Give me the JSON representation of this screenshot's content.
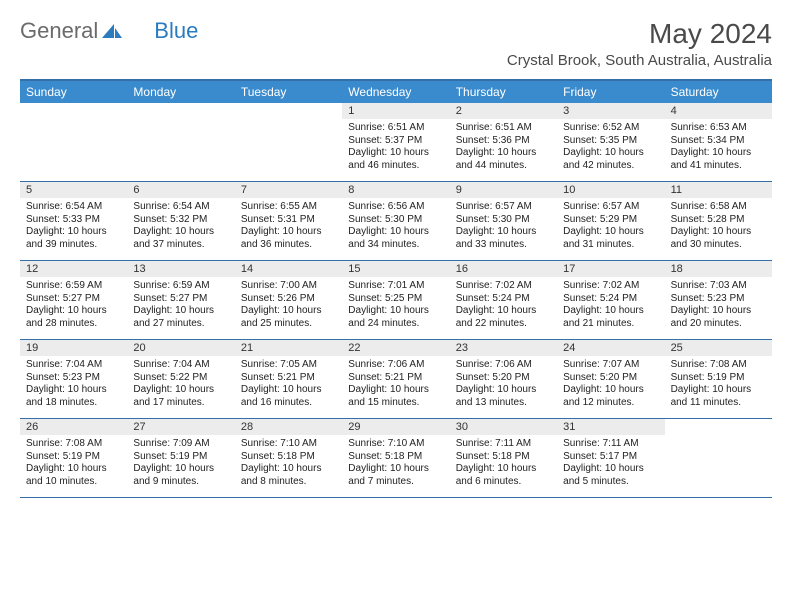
{
  "brand": {
    "part1": "General",
    "part2": "Blue"
  },
  "title": "May 2024",
  "location": "Crystal Brook, South Australia, Australia",
  "dayHeaders": [
    "Sunday",
    "Monday",
    "Tuesday",
    "Wednesday",
    "Thursday",
    "Friday",
    "Saturday"
  ],
  "colors": {
    "header_bg": "#3a8bcd",
    "divider": "#356fa8",
    "daynum_bg": "#ececec",
    "brand_gray": "#6b6b6b",
    "brand_blue": "#2b7bbf"
  },
  "weeks": [
    [
      {
        "num": "",
        "sunrise": "",
        "sunset": "",
        "daylight": ""
      },
      {
        "num": "",
        "sunrise": "",
        "sunset": "",
        "daylight": ""
      },
      {
        "num": "",
        "sunrise": "",
        "sunset": "",
        "daylight": ""
      },
      {
        "num": "1",
        "sunrise": "Sunrise: 6:51 AM",
        "sunset": "Sunset: 5:37 PM",
        "daylight": "Daylight: 10 hours and 46 minutes."
      },
      {
        "num": "2",
        "sunrise": "Sunrise: 6:51 AM",
        "sunset": "Sunset: 5:36 PM",
        "daylight": "Daylight: 10 hours and 44 minutes."
      },
      {
        "num": "3",
        "sunrise": "Sunrise: 6:52 AM",
        "sunset": "Sunset: 5:35 PM",
        "daylight": "Daylight: 10 hours and 42 minutes."
      },
      {
        "num": "4",
        "sunrise": "Sunrise: 6:53 AM",
        "sunset": "Sunset: 5:34 PM",
        "daylight": "Daylight: 10 hours and 41 minutes."
      }
    ],
    [
      {
        "num": "5",
        "sunrise": "Sunrise: 6:54 AM",
        "sunset": "Sunset: 5:33 PM",
        "daylight": "Daylight: 10 hours and 39 minutes."
      },
      {
        "num": "6",
        "sunrise": "Sunrise: 6:54 AM",
        "sunset": "Sunset: 5:32 PM",
        "daylight": "Daylight: 10 hours and 37 minutes."
      },
      {
        "num": "7",
        "sunrise": "Sunrise: 6:55 AM",
        "sunset": "Sunset: 5:31 PM",
        "daylight": "Daylight: 10 hours and 36 minutes."
      },
      {
        "num": "8",
        "sunrise": "Sunrise: 6:56 AM",
        "sunset": "Sunset: 5:30 PM",
        "daylight": "Daylight: 10 hours and 34 minutes."
      },
      {
        "num": "9",
        "sunrise": "Sunrise: 6:57 AM",
        "sunset": "Sunset: 5:30 PM",
        "daylight": "Daylight: 10 hours and 33 minutes."
      },
      {
        "num": "10",
        "sunrise": "Sunrise: 6:57 AM",
        "sunset": "Sunset: 5:29 PM",
        "daylight": "Daylight: 10 hours and 31 minutes."
      },
      {
        "num": "11",
        "sunrise": "Sunrise: 6:58 AM",
        "sunset": "Sunset: 5:28 PM",
        "daylight": "Daylight: 10 hours and 30 minutes."
      }
    ],
    [
      {
        "num": "12",
        "sunrise": "Sunrise: 6:59 AM",
        "sunset": "Sunset: 5:27 PM",
        "daylight": "Daylight: 10 hours and 28 minutes."
      },
      {
        "num": "13",
        "sunrise": "Sunrise: 6:59 AM",
        "sunset": "Sunset: 5:27 PM",
        "daylight": "Daylight: 10 hours and 27 minutes."
      },
      {
        "num": "14",
        "sunrise": "Sunrise: 7:00 AM",
        "sunset": "Sunset: 5:26 PM",
        "daylight": "Daylight: 10 hours and 25 minutes."
      },
      {
        "num": "15",
        "sunrise": "Sunrise: 7:01 AM",
        "sunset": "Sunset: 5:25 PM",
        "daylight": "Daylight: 10 hours and 24 minutes."
      },
      {
        "num": "16",
        "sunrise": "Sunrise: 7:02 AM",
        "sunset": "Sunset: 5:24 PM",
        "daylight": "Daylight: 10 hours and 22 minutes."
      },
      {
        "num": "17",
        "sunrise": "Sunrise: 7:02 AM",
        "sunset": "Sunset: 5:24 PM",
        "daylight": "Daylight: 10 hours and 21 minutes."
      },
      {
        "num": "18",
        "sunrise": "Sunrise: 7:03 AM",
        "sunset": "Sunset: 5:23 PM",
        "daylight": "Daylight: 10 hours and 20 minutes."
      }
    ],
    [
      {
        "num": "19",
        "sunrise": "Sunrise: 7:04 AM",
        "sunset": "Sunset: 5:23 PM",
        "daylight": "Daylight: 10 hours and 18 minutes."
      },
      {
        "num": "20",
        "sunrise": "Sunrise: 7:04 AM",
        "sunset": "Sunset: 5:22 PM",
        "daylight": "Daylight: 10 hours and 17 minutes."
      },
      {
        "num": "21",
        "sunrise": "Sunrise: 7:05 AM",
        "sunset": "Sunset: 5:21 PM",
        "daylight": "Daylight: 10 hours and 16 minutes."
      },
      {
        "num": "22",
        "sunrise": "Sunrise: 7:06 AM",
        "sunset": "Sunset: 5:21 PM",
        "daylight": "Daylight: 10 hours and 15 minutes."
      },
      {
        "num": "23",
        "sunrise": "Sunrise: 7:06 AM",
        "sunset": "Sunset: 5:20 PM",
        "daylight": "Daylight: 10 hours and 13 minutes."
      },
      {
        "num": "24",
        "sunrise": "Sunrise: 7:07 AM",
        "sunset": "Sunset: 5:20 PM",
        "daylight": "Daylight: 10 hours and 12 minutes."
      },
      {
        "num": "25",
        "sunrise": "Sunrise: 7:08 AM",
        "sunset": "Sunset: 5:19 PM",
        "daylight": "Daylight: 10 hours and 11 minutes."
      }
    ],
    [
      {
        "num": "26",
        "sunrise": "Sunrise: 7:08 AM",
        "sunset": "Sunset: 5:19 PM",
        "daylight": "Daylight: 10 hours and 10 minutes."
      },
      {
        "num": "27",
        "sunrise": "Sunrise: 7:09 AM",
        "sunset": "Sunset: 5:19 PM",
        "daylight": "Daylight: 10 hours and 9 minutes."
      },
      {
        "num": "28",
        "sunrise": "Sunrise: 7:10 AM",
        "sunset": "Sunset: 5:18 PM",
        "daylight": "Daylight: 10 hours and 8 minutes."
      },
      {
        "num": "29",
        "sunrise": "Sunrise: 7:10 AM",
        "sunset": "Sunset: 5:18 PM",
        "daylight": "Daylight: 10 hours and 7 minutes."
      },
      {
        "num": "30",
        "sunrise": "Sunrise: 7:11 AM",
        "sunset": "Sunset: 5:18 PM",
        "daylight": "Daylight: 10 hours and 6 minutes."
      },
      {
        "num": "31",
        "sunrise": "Sunrise: 7:11 AM",
        "sunset": "Sunset: 5:17 PM",
        "daylight": "Daylight: 10 hours and 5 minutes."
      },
      {
        "num": "",
        "sunrise": "",
        "sunset": "",
        "daylight": ""
      }
    ]
  ]
}
